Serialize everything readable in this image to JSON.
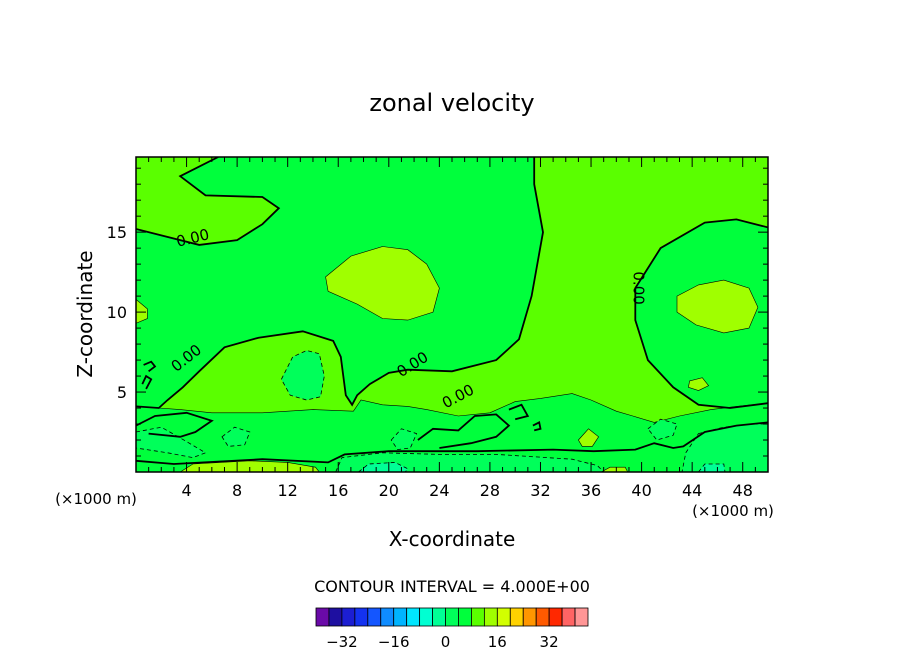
{
  "chart_data": {
    "type": "contour",
    "title": "zonal velocity",
    "xlabel": "X-coordinate",
    "ylabel": "Z-coordinate",
    "x_unit": "(×1000 m)",
    "y_unit": "(×1000 m)",
    "xlim": [
      0,
      50
    ],
    "ylim": [
      0,
      19.7
    ],
    "x_ticks": [
      4,
      8,
      12,
      16,
      20,
      24,
      28,
      32,
      36,
      40,
      44,
      48
    ],
    "y_ticks": [
      5,
      10,
      15
    ],
    "contour_interval_text": "CONTOUR INTERVAL = 4.000E+00",
    "contour_label": "0.00",
    "background_level": 8,
    "regions": [
      {
        "name": "upper-left-tongue",
        "level": 4,
        "points": [
          [
            0,
            0
          ],
          [
            0,
            15.2
          ],
          [
            2,
            14.8
          ],
          [
            5,
            14.2
          ],
          [
            8,
            14.5
          ],
          [
            10,
            15.5
          ],
          [
            11.3,
            16.5
          ],
          [
            10,
            17.2
          ],
          [
            5.5,
            17.3
          ],
          [
            3.5,
            18.5
          ],
          [
            6.5,
            19.7
          ],
          [
            31.5,
            19.7
          ],
          [
            31.5,
            18
          ],
          [
            32.2,
            15
          ],
          [
            31.3,
            11
          ],
          [
            30.3,
            8.3
          ],
          [
            28.5,
            7
          ],
          [
            25,
            6.3
          ],
          [
            21.5,
            6.4
          ],
          [
            20,
            6.2
          ],
          [
            18.5,
            5.5
          ],
          [
            17.5,
            4.8
          ],
          [
            17.1,
            4.2
          ],
          [
            16.6,
            4.8
          ],
          [
            16.4,
            6
          ],
          [
            16.2,
            7.2
          ],
          [
            15.6,
            8.2
          ],
          [
            13.2,
            8.8
          ],
          [
            9.7,
            8.4
          ],
          [
            7,
            7.8
          ],
          [
            5,
            6.3
          ],
          [
            3.7,
            5.3
          ],
          [
            2.5,
            4.5
          ],
          [
            1.8,
            4
          ],
          [
            0,
            4.1
          ]
        ]
      },
      {
        "name": "upper-right-lobe",
        "level": 4,
        "points": [
          [
            50,
            15.3
          ],
          [
            47.5,
            15.8
          ],
          [
            45,
            15.6
          ],
          [
            41.5,
            14
          ],
          [
            39.5,
            11.5
          ],
          [
            39.5,
            9.5
          ],
          [
            40.5,
            7
          ],
          [
            42.5,
            5.3
          ],
          [
            44.5,
            4.2
          ],
          [
            47,
            4
          ],
          [
            50,
            4.3
          ]
        ]
      },
      {
        "name": "bottom-band",
        "level": 4,
        "points": [
          [
            0,
            0
          ],
          [
            0,
            4.1
          ],
          [
            1.8,
            4
          ],
          [
            3.5,
            3.9
          ],
          [
            6,
            3.7
          ],
          [
            10,
            3.7
          ],
          [
            14,
            3.9
          ],
          [
            17.2,
            3.8
          ],
          [
            17.8,
            4.5
          ],
          [
            19.5,
            4.2
          ],
          [
            21.5,
            4.1
          ],
          [
            23,
            3.9
          ],
          [
            25.5,
            3.5
          ],
          [
            28,
            3.7
          ],
          [
            30,
            4.4
          ],
          [
            32,
            4.6
          ],
          [
            34.5,
            4.9
          ],
          [
            36,
            4.5
          ],
          [
            38,
            3.8
          ],
          [
            39.3,
            3.5
          ],
          [
            41,
            3.1
          ],
          [
            43,
            3.5
          ],
          [
            45.5,
            3.9
          ],
          [
            47.5,
            4.1
          ],
          [
            50,
            4.3
          ],
          [
            50,
            0
          ]
        ]
      },
      {
        "name": "green-core-12",
        "level": 12,
        "points": [
          [
            15,
            12.2
          ],
          [
            17,
            13.5
          ],
          [
            19.5,
            14.1
          ],
          [
            21.5,
            13.9
          ],
          [
            23,
            13
          ],
          [
            24,
            11.5
          ],
          [
            23.5,
            10
          ],
          [
            21.5,
            9.5
          ],
          [
            19.5,
            9.6
          ],
          [
            17.5,
            10.5
          ],
          [
            15.2,
            11.3
          ]
        ]
      },
      {
        "name": "green-right-12",
        "level": 12,
        "points": [
          [
            42.8,
            11
          ],
          [
            44.5,
            11.7
          ],
          [
            46.5,
            12
          ],
          [
            48.5,
            11.5
          ],
          [
            49.2,
            10.3
          ],
          [
            48.5,
            9
          ],
          [
            46.5,
            8.7
          ],
          [
            44.3,
            9.2
          ],
          [
            42.8,
            10
          ]
        ]
      },
      {
        "name": "green-left-edge-12",
        "level": 12,
        "points": [
          [
            0,
            10.8
          ],
          [
            0.9,
            10.2
          ],
          [
            0.9,
            9.6
          ],
          [
            0,
            9.3
          ]
        ]
      },
      {
        "name": "green-small-right-12",
        "level": 12,
        "points": [
          [
            43.8,
            5.7
          ],
          [
            44.8,
            5.9
          ],
          [
            45.3,
            5.4
          ],
          [
            44.5,
            5.1
          ],
          [
            43.7,
            5.3
          ]
        ]
      },
      {
        "name": "cyan-blob-0",
        "level": 0,
        "points": [
          [
            11.5,
            5.8
          ],
          [
            12.4,
            7.2
          ],
          [
            13.5,
            7.6
          ],
          [
            14.5,
            7.4
          ],
          [
            14.9,
            6
          ],
          [
            14.6,
            4.7
          ],
          [
            13.5,
            4.5
          ],
          [
            12.2,
            4.8
          ]
        ]
      },
      {
        "name": "cyan-left-0",
        "level": 0,
        "points": [
          [
            0,
            2.5
          ],
          [
            2,
            2.8
          ],
          [
            4,
            1.9
          ],
          [
            5.5,
            1.2
          ],
          [
            4.5,
            0.9
          ],
          [
            2.5,
            1.2
          ],
          [
            0,
            1.5
          ]
        ]
      },
      {
        "name": "cyan-mid-0",
        "level": 0,
        "points": [
          [
            6.8,
            2.2
          ],
          [
            7.8,
            2.8
          ],
          [
            9,
            2.5
          ],
          [
            8.6,
            1.7
          ],
          [
            7.3,
            1.6
          ]
        ]
      },
      {
        "name": "cyan-patch-0",
        "level": 0,
        "points": [
          [
            20.2,
            2
          ],
          [
            21,
            2.7
          ],
          [
            22.2,
            2.4
          ],
          [
            21.7,
            1.5
          ],
          [
            20.7,
            1.4
          ]
        ]
      },
      {
        "name": "cyan-right-0",
        "level": 0,
        "points": [
          [
            40.5,
            2.7
          ],
          [
            41.5,
            3.3
          ],
          [
            42.8,
            3
          ],
          [
            42.5,
            2.3
          ],
          [
            41.2,
            2
          ]
        ]
      },
      {
        "name": "cyan-right-edge-0",
        "level": 0,
        "points": [
          [
            44.5,
            2.4
          ],
          [
            46.5,
            2.8
          ],
          [
            48.8,
            3
          ],
          [
            50,
            3
          ],
          [
            50,
            0
          ],
          [
            43.2,
            0
          ],
          [
            43.5,
            1.2
          ]
        ]
      },
      {
        "name": "cyan-bottom-0",
        "level": 0,
        "points": [
          [
            15.8,
            0
          ],
          [
            16.3,
            0.9
          ],
          [
            19.5,
            1.2
          ],
          [
            24,
            1.1
          ],
          [
            28.5,
            1.1
          ],
          [
            34.5,
            0.8
          ],
          [
            36.5,
            0.4
          ],
          [
            37,
            0
          ]
        ]
      },
      {
        "name": "deep-cyan-bottom--4",
        "level": -4,
        "points": [
          [
            17.6,
            0
          ],
          [
            18.4,
            0.5
          ],
          [
            20.5,
            0.6
          ],
          [
            21.5,
            0.2
          ],
          [
            21.3,
            0
          ]
        ]
      },
      {
        "name": "deep-cyan-right--4",
        "level": -4,
        "points": [
          [
            44.5,
            0
          ],
          [
            45,
            0.5
          ],
          [
            46.5,
            0.5
          ],
          [
            46.6,
            0
          ]
        ]
      },
      {
        "name": "light-green-bottom-12",
        "level": 12,
        "points": [
          [
            3.5,
            0
          ],
          [
            4.5,
            0.5
          ],
          [
            9,
            0.7
          ],
          [
            12,
            0.6
          ],
          [
            14.2,
            0.3
          ],
          [
            14.5,
            0
          ]
        ]
      },
      {
        "name": "light-green-patch-12",
        "level": 12,
        "points": [
          [
            35,
            2
          ],
          [
            35.8,
            2.7
          ],
          [
            36.6,
            2.2
          ],
          [
            36.1,
            1.6
          ],
          [
            35.3,
            1.6
          ]
        ]
      },
      {
        "name": "light-green-patch2-12",
        "level": 12,
        "points": [
          [
            36.8,
            0
          ],
          [
            37.5,
            0.3
          ],
          [
            38.7,
            0.3
          ],
          [
            38.9,
            0
          ]
        ]
      }
    ],
    "zero_contours": [
      {
        "name": "zero-contour-upper-left",
        "points": [
          [
            0,
            15.2
          ],
          [
            2,
            14.8
          ],
          [
            5,
            14.2
          ],
          [
            8,
            14.5
          ],
          [
            10,
            15.5
          ],
          [
            11.3,
            16.5
          ],
          [
            10,
            17.2
          ],
          [
            5.5,
            17.3
          ],
          [
            3.5,
            18.5
          ],
          [
            6.5,
            19.7
          ]
        ]
      },
      {
        "name": "zero-contour-main",
        "points": [
          [
            31.5,
            19.7
          ],
          [
            31.5,
            18
          ],
          [
            32.2,
            15
          ],
          [
            31.3,
            11
          ],
          [
            30.3,
            8.3
          ],
          [
            28.5,
            7
          ],
          [
            25,
            6.3
          ],
          [
            21.5,
            6.4
          ],
          [
            20,
            6.2
          ],
          [
            18.5,
            5.5
          ],
          [
            17.5,
            4.8
          ],
          [
            17.1,
            4.2
          ],
          [
            16.6,
            4.8
          ],
          [
            16.4,
            6
          ],
          [
            16.2,
            7.2
          ],
          [
            15.6,
            8.2
          ],
          [
            13.2,
            8.8
          ],
          [
            9.7,
            8.4
          ],
          [
            7,
            7.8
          ],
          [
            5,
            6.3
          ],
          [
            3.7,
            5.3
          ],
          [
            2.5,
            4.5
          ],
          [
            1.8,
            4
          ],
          [
            0,
            4.1
          ]
        ]
      },
      {
        "name": "zero-contour-right",
        "points": [
          [
            50,
            15.3
          ],
          [
            47.5,
            15.8
          ],
          [
            45,
            15.6
          ],
          [
            41.5,
            14
          ],
          [
            39.5,
            11.5
          ],
          [
            39.5,
            9.5
          ],
          [
            40.5,
            7
          ],
          [
            42.5,
            5.3
          ],
          [
            44.5,
            4.2
          ],
          [
            47,
            4
          ],
          [
            50,
            4.3
          ]
        ]
      },
      {
        "name": "zero-contour-bottom",
        "points": [
          [
            0,
            2.9
          ],
          [
            1.5,
            3.5
          ],
          [
            4,
            3.7
          ],
          [
            6,
            3.2
          ],
          [
            4.7,
            2.5
          ],
          [
            3.5,
            2.2
          ],
          [
            1,
            2.4
          ]
        ]
      },
      {
        "name": "zero-contour-dip",
        "points": [
          [
            22.3,
            2
          ],
          [
            23.5,
            2.7
          ],
          [
            25.5,
            2.6
          ],
          [
            26.8,
            3.5
          ],
          [
            28.5,
            3.6
          ],
          [
            29.5,
            2.9
          ],
          [
            28.5,
            2.2
          ],
          [
            26.5,
            1.8
          ],
          [
            24,
            1.5
          ]
        ]
      },
      {
        "name": "zero-contour-lower",
        "points": [
          [
            0,
            0.7
          ],
          [
            3,
            0.5
          ],
          [
            10,
            0.8
          ],
          [
            15.2,
            0.6
          ],
          [
            16.5,
            1.1
          ],
          [
            20,
            1.3
          ],
          [
            27,
            1.3
          ],
          [
            33,
            1.4
          ],
          [
            36.2,
            1.3
          ],
          [
            39.5,
            1.4
          ],
          [
            41,
            1.8
          ],
          [
            42.5,
            1.5
          ],
          [
            43.3,
            1.6
          ],
          [
            45,
            2.5
          ],
          [
            47.5,
            2.9
          ],
          [
            50,
            3.1
          ]
        ]
      },
      {
        "name": "zero-contour-loop-1",
        "points": [
          [
            0.6,
            6.7
          ],
          [
            1.2,
            6.9
          ],
          [
            1.5,
            6.6
          ],
          [
            1,
            6.3
          ]
        ]
      },
      {
        "name": "zero-contour-loop-2",
        "points": [
          [
            0.5,
            5.5
          ],
          [
            0.8,
            6
          ],
          [
            1.2,
            5.8
          ],
          [
            0.8,
            5.2
          ]
        ]
      },
      {
        "name": "zero-contour-loop-3",
        "points": [
          [
            29.5,
            3.9
          ],
          [
            30.5,
            4.2
          ],
          [
            31,
            3.5
          ],
          [
            30,
            3.3
          ]
        ]
      },
      {
        "name": "zero-contour-loop-4",
        "points": [
          [
            31.4,
            2.9
          ],
          [
            31.9,
            3.1
          ],
          [
            32,
            2.7
          ],
          [
            31.5,
            2.6
          ]
        ]
      }
    ],
    "colorbar": {
      "levels": [
        -36,
        -32,
        -28,
        -24,
        -20,
        -16,
        -12,
        -8,
        -4,
        0,
        4,
        8,
        12,
        16,
        20,
        24,
        28,
        32,
        36
      ],
      "colors": [
        "#6a0aa8",
        "#1e0fa0",
        "#1c1ed2",
        "#1432f0",
        "#1456ff",
        "#0f8cff",
        "#00b4ff",
        "#00e6ff",
        "#00ffd2",
        "#00ff96",
        "#00ff5a",
        "#00ff3c",
        "#5aff00",
        "#a0ff00",
        "#d2ff00",
        "#ffd200",
        "#ff9600",
        "#ff5a00",
        "#ff2800",
        "#ff6464",
        "#ff9696"
      ],
      "tick_labels": [
        "-32",
        "-16",
        "0",
        "16",
        "32"
      ],
      "tick_values": [
        -32,
        -16,
        0,
        16,
        32
      ]
    }
  }
}
